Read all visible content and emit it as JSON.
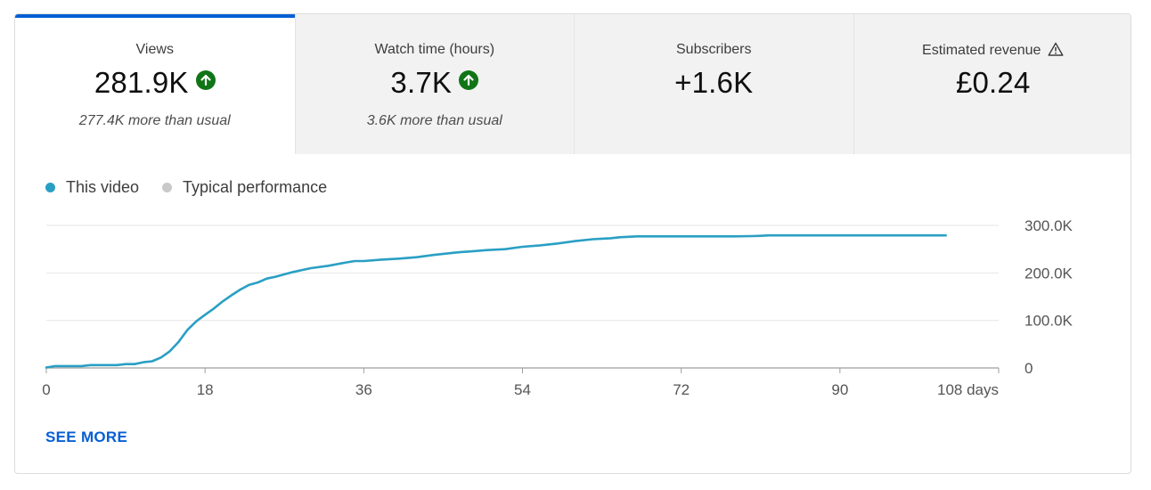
{
  "tabs": [
    {
      "label": "Views",
      "value": "281.9K",
      "trend": "up",
      "sub": "277.4K more than usual",
      "active": true
    },
    {
      "label": "Watch time (hours)",
      "value": "3.7K",
      "trend": "up",
      "sub": "3.6K more than usual",
      "active": false
    },
    {
      "label": "Subscribers",
      "value": "+1.6K",
      "trend": "",
      "sub": "",
      "active": false
    },
    {
      "label": "Estimated revenue",
      "value": "£0.24",
      "trend": "",
      "sub": "",
      "active": false,
      "warning": true
    }
  ],
  "legend": {
    "this_video": "This video",
    "typical": "Typical performance",
    "this_video_color": "#2a9fc4",
    "typical_color": "#c9c9c9"
  },
  "see_more": "SEE MORE",
  "colors": {
    "accent": "#065fd4",
    "up": "#107516",
    "line": "#2a9fc4"
  },
  "chart_data": {
    "type": "line",
    "title": "Views",
    "xlabel": "days",
    "ylabel": "",
    "x_ticks": [
      "0",
      "18",
      "36",
      "54",
      "72",
      "90",
      "108 days"
    ],
    "x_tick_values": [
      0,
      18,
      36,
      54,
      72,
      90,
      108
    ],
    "y_ticks": [
      "0",
      "100.0K",
      "200.0K",
      "300.0K"
    ],
    "y_tick_values": [
      0,
      100000,
      200000,
      300000
    ],
    "xlim": [
      0,
      108
    ],
    "ylim": [
      0,
      300000
    ],
    "series": [
      {
        "name": "This video",
        "x": [
          0,
          1,
          2,
          4,
          5,
          6,
          8,
          9,
          10,
          11,
          12,
          13,
          14,
          15,
          16,
          17,
          18,
          19,
          20,
          21,
          22,
          23,
          24,
          25,
          26,
          27,
          28,
          29,
          30,
          32,
          34,
          35,
          36,
          38,
          40,
          42,
          44,
          46,
          47,
          48,
          50,
          52,
          54,
          56,
          58,
          60,
          62,
          63,
          64,
          65,
          66,
          67,
          68,
          70,
          72,
          74,
          76,
          78,
          80,
          81,
          82,
          84,
          88,
          92,
          96,
          100,
          102
        ],
        "values": [
          1000,
          4000,
          4000,
          4000,
          6000,
          6000,
          6000,
          8000,
          8000,
          12000,
          14000,
          22000,
          35000,
          55000,
          80000,
          98000,
          112000,
          125000,
          140000,
          153000,
          165000,
          175000,
          180000,
          188000,
          192000,
          197000,
          202000,
          206000,
          210000,
          215000,
          222000,
          225000,
          225000,
          228000,
          230000,
          233000,
          238000,
          242000,
          244000,
          245000,
          248000,
          250000,
          255000,
          258000,
          262000,
          267000,
          271000,
          272000,
          273000,
          275000,
          276000,
          277000,
          277000,
          277000,
          277000,
          277000,
          277000,
          277000,
          277500,
          278000,
          279000,
          279000,
          279000,
          279000,
          279000,
          279000,
          279000
        ]
      }
    ]
  }
}
